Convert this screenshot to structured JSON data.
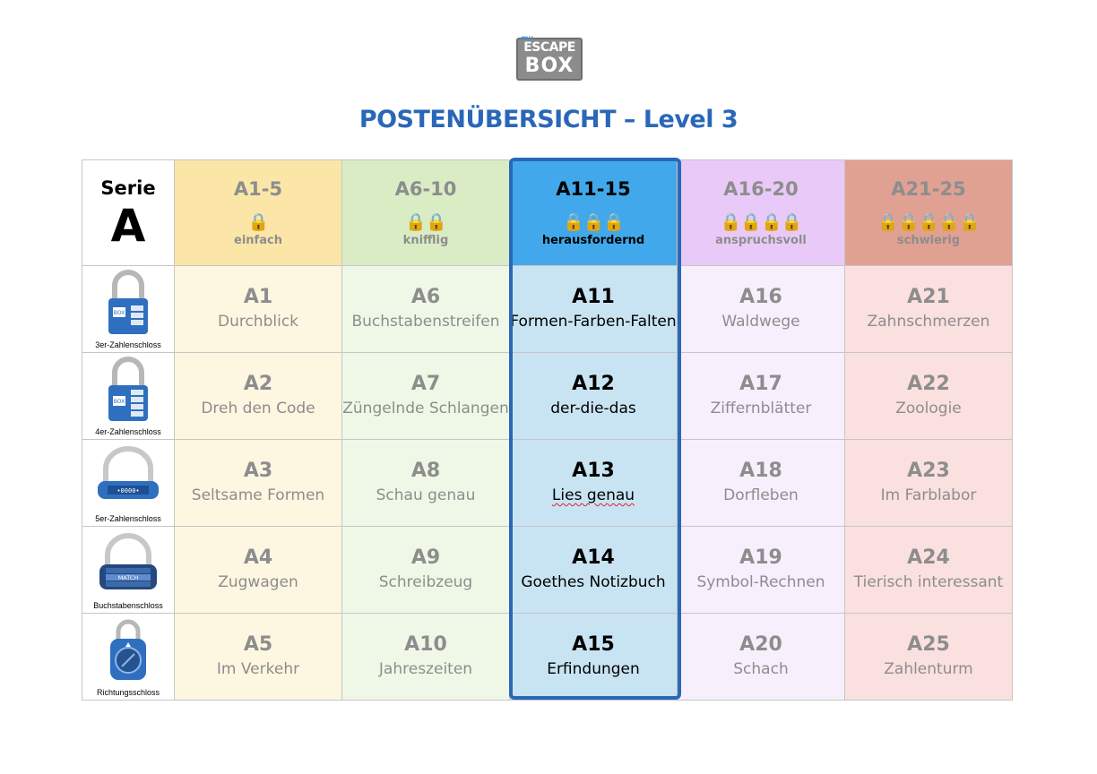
{
  "logo": {
    "small": "my",
    "line1": "ESCAPE",
    "line2": "BOX"
  },
  "title": "POSTENÜBERSICHT – Level 3",
  "serie": {
    "label": "Serie",
    "letter": "A"
  },
  "colors": {
    "title": "#2a67b8",
    "highlight_border": "#2a67b8",
    "header_bg": [
      "#fbe6a8",
      "#d9ecc4",
      "#41a9eb",
      "#e9c9f7",
      "#e0a092"
    ],
    "cell_bg": [
      "#fdf6e0",
      "#eff8e6",
      "#c8e4f2",
      "#f8effd",
      "#fae0df"
    ]
  },
  "headers": [
    {
      "range": "A1-5",
      "locks": "🔒",
      "difficulty": "einfach",
      "text_color": "#8d8d8d"
    },
    {
      "range": "A6-10",
      "locks": "🔒🔒",
      "difficulty": "knifflig",
      "text_color": "#8d8d8d"
    },
    {
      "range": "A11-15",
      "locks": "🔒🔒🔒",
      "difficulty": "herausfordernd",
      "text_color": "#000000"
    },
    {
      "range": "A16-20",
      "locks": "🔒🔒🔒🔒",
      "difficulty": "anspruchsvoll",
      "text_color": "#8d8d8d"
    },
    {
      "range": "A21-25",
      "locks": "🔒🔒🔒🔒🔒",
      "difficulty": "schwierig",
      "text_color": "#8d8d8d"
    }
  ],
  "lock_types": [
    {
      "name": "3er-Zahlenschloss",
      "icon": "3-digit-padlock-icon"
    },
    {
      "name": "4er-Zahlenschloss",
      "icon": "4-digit-padlock-icon"
    },
    {
      "name": "5er-Zahlenschloss",
      "icon": "5-digit-padlock-icon"
    },
    {
      "name": "Buchstabenschloss",
      "icon": "letter-padlock-icon",
      "dial_text": "MATCH"
    },
    {
      "name": "Richtungsschloss",
      "icon": "directional-padlock-icon"
    }
  ],
  "rows": [
    [
      {
        "code": "A1",
        "name": "Durchblick"
      },
      {
        "code": "A6",
        "name": "Buchstabenstreifen"
      },
      {
        "code": "A11",
        "name": "Formen-Farben-Falten"
      },
      {
        "code": "A16",
        "name": "Waldwege"
      },
      {
        "code": "A21",
        "name": "Zahnschmerzen"
      }
    ],
    [
      {
        "code": "A2",
        "name": "Dreh den Code"
      },
      {
        "code": "A7",
        "name": "Züngelnde Schlangen"
      },
      {
        "code": "A12",
        "name": "der-die-das"
      },
      {
        "code": "A17",
        "name": "Ziffernblätter"
      },
      {
        "code": "A22",
        "name": "Zoologie"
      }
    ],
    [
      {
        "code": "A3",
        "name": "Seltsame Formen"
      },
      {
        "code": "A8",
        "name": "Schau genau"
      },
      {
        "code": "A13",
        "name": "Lies genau"
      },
      {
        "code": "A18",
        "name": "Dorfleben"
      },
      {
        "code": "A23",
        "name": "Im Farblabor"
      }
    ],
    [
      {
        "code": "A4",
        "name": "Zugwagen"
      },
      {
        "code": "A9",
        "name": "Schreibzeug"
      },
      {
        "code": "A14",
        "name": "Goethes Notizbuch"
      },
      {
        "code": "A19",
        "name": "Symbol-Rechnen"
      },
      {
        "code": "A24",
        "name": "Tierisch interessant"
      }
    ],
    [
      {
        "code": "A5",
        "name": "Im Verkehr"
      },
      {
        "code": "A10",
        "name": "Jahreszeiten"
      },
      {
        "code": "A15",
        "name": "Erfindungen"
      },
      {
        "code": "A20",
        "name": "Schach"
      },
      {
        "code": "A25",
        "name": "Zahlenturm"
      }
    ]
  ]
}
